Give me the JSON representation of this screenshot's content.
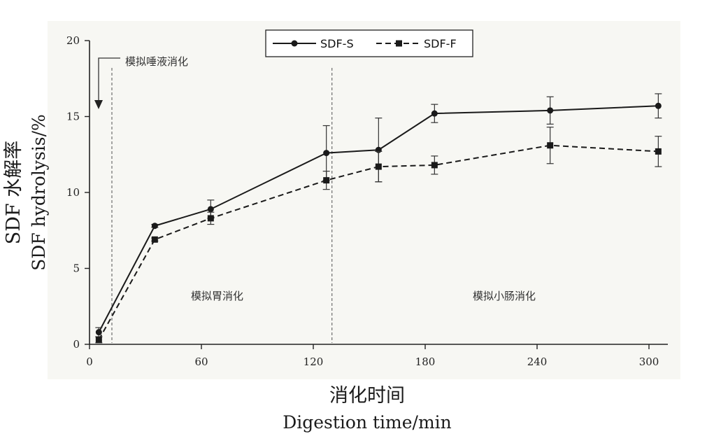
{
  "chart_data": {
    "type": "line",
    "title": "",
    "xlabel_cn": "消化时间",
    "xlabel": "Digestion time/min",
    "ylabel_cn": "SDF 水解率",
    "ylabel": "SDF hydrolysis/%",
    "xlim": [
      0,
      315
    ],
    "ylim": [
      0,
      20
    ],
    "xticks": [
      0,
      60,
      120,
      180,
      240,
      300
    ],
    "yticks": [
      0,
      5,
      10,
      15,
      20
    ],
    "grid": false,
    "legend_position": "top-center",
    "series": [
      {
        "name": "SDF-S",
        "line_style": "solid",
        "marker": "circle",
        "color": "#1a1a1a",
        "x": [
          5,
          35,
          65,
          127,
          155,
          185,
          247,
          305
        ],
        "y": [
          0.8,
          7.8,
          8.9,
          12.6,
          12.8,
          15.2,
          15.4,
          15.7
        ],
        "err": [
          0.3,
          0.1,
          0.6,
          1.8,
          2.1,
          0.6,
          0.9,
          0.8
        ]
      },
      {
        "name": "SDF-F",
        "line_style": "dashed",
        "marker": "square",
        "color": "#1a1a1a",
        "x": [
          5,
          35,
          65,
          127,
          155,
          185,
          247,
          305
        ],
        "y": [
          0.3,
          6.9,
          8.3,
          10.8,
          11.7,
          11.8,
          13.1,
          12.7
        ],
        "err": [
          0.2,
          0.1,
          0.4,
          0.6,
          1.0,
          0.6,
          1.2,
          1.0
        ]
      }
    ],
    "phases": [
      {
        "label": "模拟唾液消化",
        "boundary_x": 12
      },
      {
        "label": "模拟胃消化",
        "boundary_x": 130
      },
      {
        "label": "模拟小肠消化"
      }
    ]
  }
}
